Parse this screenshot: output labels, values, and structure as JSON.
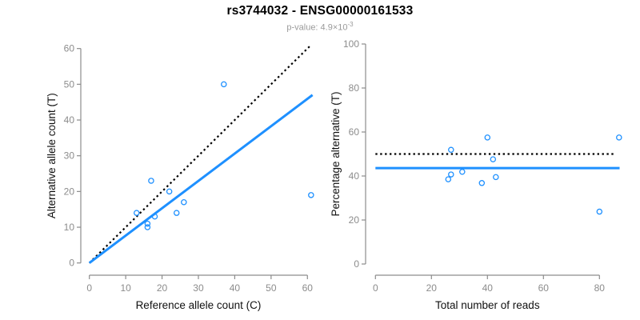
{
  "header": {
    "title": "rs3744032 - ENSG00000161533",
    "subtitle_text": "p-value: 4.9×10",
    "subtitle_exponent": "-3"
  },
  "colors": {
    "accent_blue": "#1E90FF",
    "dotted_black": "#000000",
    "axis_gray": "#8c8c8c",
    "tick_label_gray": "#8c8c8c"
  },
  "chart_data": [
    {
      "type": "scatter",
      "name": "allele-count-scatter",
      "xlabel": "Reference allele count (C)",
      "ylabel": "Alternative allele count (T)",
      "xlim": [
        0,
        60
      ],
      "ylim": [
        0,
        60
      ],
      "xticks": [
        0,
        10,
        20,
        30,
        40,
        50,
        60
      ],
      "yticks": [
        0,
        10,
        20,
        30,
        40,
        50,
        60
      ],
      "grid": false,
      "point_color": "#1E90FF",
      "points": [
        [
          13,
          14
        ],
        [
          16,
          10
        ],
        [
          16,
          11
        ],
        [
          17,
          23
        ],
        [
          18,
          13
        ],
        [
          22,
          20
        ],
        [
          24,
          14
        ],
        [
          26,
          17
        ],
        [
          37,
          50
        ],
        [
          61,
          19
        ]
      ],
      "lines": [
        {
          "name": "identity-line-dotted",
          "style": "dotted",
          "color": "#000000",
          "from": [
            0,
            0
          ],
          "to": [
            61,
            61
          ]
        },
        {
          "name": "fit-line-solid",
          "style": "solid",
          "color": "#1E90FF",
          "from": [
            0,
            0
          ],
          "to": [
            61.4,
            47
          ]
        }
      ]
    },
    {
      "type": "scatter",
      "name": "read-percentage-scatter",
      "xlabel": "Total number of reads",
      "ylabel": "Percentage alternative (T)",
      "xlim": [
        0,
        80
      ],
      "ylim": [
        0,
        100
      ],
      "xticks": [
        0,
        20,
        40,
        60,
        80
      ],
      "yticks": [
        0,
        20,
        40,
        60,
        80,
        100
      ],
      "grid": false,
      "point_color": "#1E90FF",
      "points": [
        [
          26,
          38.5
        ],
        [
          27,
          40.7
        ],
        [
          27,
          51.9
        ],
        [
          31,
          41.9
        ],
        [
          38,
          36.8
        ],
        [
          40,
          57.5
        ],
        [
          42,
          47.6
        ],
        [
          43,
          39.5
        ],
        [
          80,
          23.8
        ],
        [
          87,
          57.5
        ]
      ],
      "lines": [
        {
          "name": "expected-line-dotted",
          "style": "dotted",
          "color": "#000000",
          "from": [
            0,
            50
          ],
          "to": [
            85.5,
            50
          ]
        },
        {
          "name": "mean-line-solid",
          "style": "solid",
          "color": "#1E90FF",
          "from": [
            0,
            43.6
          ],
          "to": [
            87.2,
            43.6
          ]
        }
      ]
    }
  ]
}
